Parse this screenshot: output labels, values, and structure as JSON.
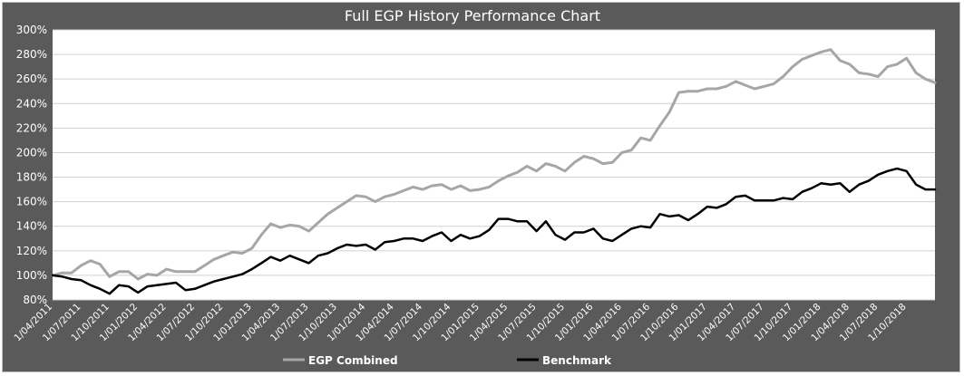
{
  "chart_data": {
    "type": "line",
    "title": "Full EGP History Performance Chart",
    "xlabel": "",
    "ylabel": "",
    "ylim": [
      80,
      300
    ],
    "y_ticks": [
      "300%",
      "280%",
      "260%",
      "240%",
      "220%",
      "200%",
      "180%",
      "160%",
      "140%",
      "120%",
      "100%",
      "80%"
    ],
    "x_tick_labels": [
      "1/04/2011",
      "1/07/2011",
      "1/10/2011",
      "1/01/2012",
      "1/04/2012",
      "1/07/2012",
      "1/10/2012",
      "1/01/2013",
      "1/04/2013",
      "1/07/2013",
      "1/10/2013",
      "1/01/2014",
      "1/04/2014",
      "1/07/2014",
      "1/10/2014",
      "1/01/2015",
      "1/04/2015",
      "1/07/2015",
      "1/10/2015",
      "1/01/2016",
      "1/04/2016",
      "1/07/2016",
      "1/10/2016",
      "1/01/2017",
      "1/04/2017",
      "1/07/2017",
      "1/10/2017",
      "1/01/2018",
      "1/04/2018",
      "1/07/2018",
      "1/10/2018"
    ],
    "grid": true,
    "legend_position": "bottom-center",
    "colors": {
      "background": "#5a5a5a",
      "plot_background": "#ffffff",
      "grid": "#d0d0d0",
      "title_text": "#ffffff",
      "axis_text": "#ffffff",
      "egp": "#a6a6a6",
      "benchmark": "#000000"
    },
    "series": [
      {
        "name": "EGP Combined",
        "color": "#a6a6a6",
        "values": [
          100,
          102,
          102,
          108,
          112,
          109,
          99,
          103,
          103,
          97,
          101,
          100,
          105,
          103,
          103,
          103,
          108,
          113,
          116,
          119,
          118,
          122,
          133,
          142,
          139,
          141,
          140,
          136,
          143,
          150,
          155,
          160,
          165,
          164,
          160,
          164,
          166,
          169,
          172,
          170,
          173,
          174,
          170,
          173,
          169,
          170,
          172,
          177,
          181,
          184,
          189,
          185,
          191,
          189,
          185,
          192,
          197,
          195,
          191,
          192,
          200,
          202,
          212,
          210,
          222,
          233,
          249,
          250,
          250,
          252,
          252,
          254,
          258,
          255,
          252,
          254,
          256,
          262,
          270,
          276,
          279,
          282,
          284,
          275,
          272,
          265,
          264,
          262,
          270,
          272,
          277,
          265,
          260,
          257
        ]
      },
      {
        "name": "Benchmark",
        "color": "#000000",
        "values": [
          100,
          99,
          97,
          96,
          92,
          89,
          85,
          92,
          91,
          86,
          91,
          92,
          93,
          94,
          88,
          89,
          92,
          95,
          97,
          99,
          101,
          105,
          110,
          115,
          112,
          116,
          113,
          110,
          116,
          118,
          122,
          125,
          124,
          125,
          121,
          127,
          128,
          130,
          130,
          128,
          132,
          135,
          128,
          133,
          130,
          132,
          137,
          146,
          146,
          144,
          144,
          136,
          144,
          133,
          129,
          135,
          135,
          138,
          130,
          128,
          133,
          138,
          140,
          139,
          150,
          148,
          149,
          145,
          150,
          156,
          155,
          158,
          164,
          165,
          161,
          161,
          161,
          163,
          162,
          168,
          171,
          175,
          174,
          175,
          168,
          174,
          177,
          182,
          185,
          187,
          185,
          174,
          170,
          170
        ]
      }
    ]
  }
}
